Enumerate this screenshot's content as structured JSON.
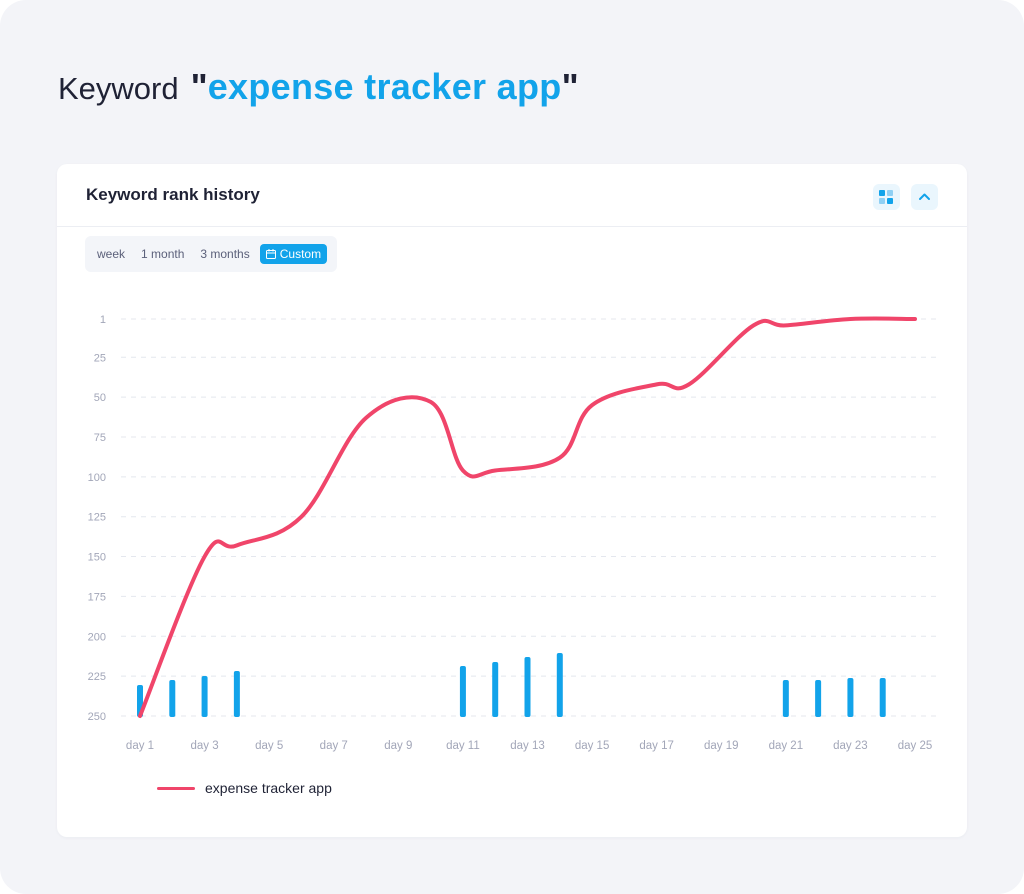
{
  "heading": {
    "prefix": "Keyword",
    "open_quote": "\"",
    "keyword": "expense tracker app",
    "close_quote": "\""
  },
  "card": {
    "title": "Keyword rank history",
    "grid_icon": "grid-view-icon",
    "collapse_icon": "chevron-up-icon"
  },
  "ranges": {
    "week": "week",
    "month": "1 month",
    "three_months": "3 months",
    "custom": "Custom",
    "custom_icon": "calendar-icon"
  },
  "colors": {
    "line": "#f0456a",
    "bars": "#12a3ea",
    "accent": "#12a3ea",
    "grid": "#e4e7ee",
    "tick_text": "#a2a6b8"
  },
  "chart_data": {
    "type": "line",
    "title": "",
    "xlabel": "",
    "ylabel": "",
    "y_reversed": true,
    "ylim": [
      1,
      250
    ],
    "y_ticks": [
      1,
      25,
      50,
      75,
      100,
      125,
      150,
      175,
      200,
      225,
      250
    ],
    "x_tick_labels": [
      "day 1",
      "day 3",
      "day 5",
      "day 7",
      "day 9",
      "day 11",
      "day 13",
      "day 15",
      "day 17",
      "day 19",
      "day 21",
      "day 23",
      "day 25"
    ],
    "grid": "horizontal dashed",
    "legend_position": "bottom-left",
    "series": [
      {
        "name": "expense tracker app",
        "type": "line",
        "x": [
          1,
          3,
          4,
          6,
          8,
          10,
          11,
          12,
          14,
          15,
          17,
          18,
          20,
          21,
          23,
          25
        ],
        "values": [
          250,
          150,
          143,
          125,
          63,
          53,
          96,
          96,
          88,
          55,
          42,
          42,
          5,
          5,
          1,
          1
        ]
      },
      {
        "type": "bar",
        "x": [
          1,
          2,
          3,
          4,
          11,
          12,
          13,
          14,
          21,
          22,
          23,
          24
        ],
        "values": [
          32,
          37,
          41,
          46,
          51,
          55,
          60,
          64,
          37,
          37,
          39,
          39
        ]
      }
    ]
  }
}
